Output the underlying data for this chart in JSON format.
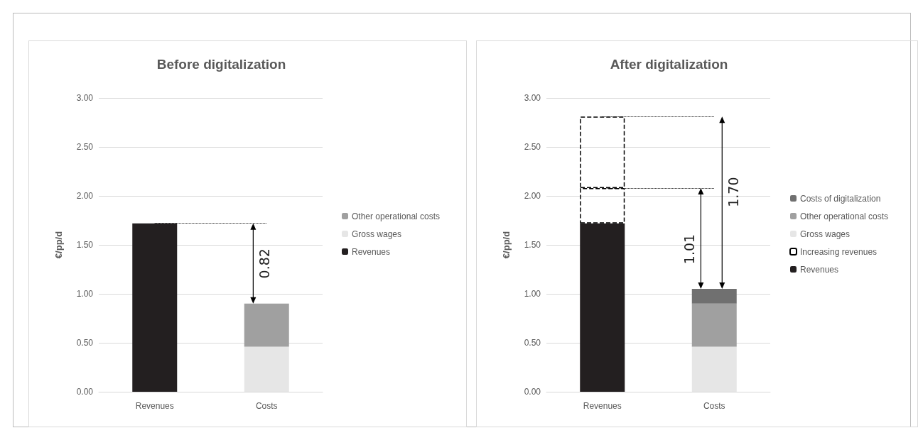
{
  "chart_data": [
    {
      "type": "bar",
      "title": "Before digitalization",
      "ylabel": "€/pp/d",
      "categories": [
        "Revenues",
        "Costs"
      ],
      "stacked": true,
      "ylim": [
        0,
        3
      ],
      "yticks": [
        {
          "value": 0,
          "label": "0.00"
        },
        {
          "value": 0.5,
          "label": "0.50"
        },
        {
          "value": 1,
          "label": "1.00"
        },
        {
          "value": 1.5,
          "label": "1.50"
        },
        {
          "value": 2,
          "label": "2.00"
        },
        {
          "value": 2.5,
          "label": "2.50"
        },
        {
          "value": 3,
          "label": "3.00"
        }
      ],
      "grid": "y",
      "legend": "right",
      "series": [
        {
          "name": "Revenues",
          "color": "#231f20",
          "values": [
            1.72,
            null
          ]
        },
        {
          "name": "Gross wages",
          "color": "#e6e6e6",
          "values": [
            null,
            0.46
          ]
        },
        {
          "name": "Other operational costs",
          "color": "#a0a0a0",
          "values": [
            null,
            0.44
          ]
        }
      ],
      "ref_lines": [
        {
          "axis": "y",
          "value": 1.72,
          "line_style": "dotted",
          "color": "#000000"
        }
      ],
      "annotations": [
        "0.82"
      ]
    },
    {
      "type": "bar",
      "title": "After digitalization",
      "ylabel": "€/pp/d",
      "categories": [
        "Revenues",
        "Costs"
      ],
      "stacked": true,
      "ylim": [
        0,
        3
      ],
      "yticks": [
        {
          "value": 0,
          "label": "0.00"
        },
        {
          "value": 0.5,
          "label": "0.50"
        },
        {
          "value": 1,
          "label": "1.00"
        },
        {
          "value": 1.5,
          "label": "1.50"
        },
        {
          "value": 2,
          "label": "2.00"
        },
        {
          "value": 2.5,
          "label": "2.50"
        },
        {
          "value": 3,
          "label": "3.00"
        }
      ],
      "grid": "y",
      "legend": "right",
      "series": [
        {
          "name": "Revenues",
          "color": "#231f20",
          "values": [
            1.72,
            null
          ]
        },
        {
          "name": "Increasing revenues",
          "color": "#000000",
          "line_style": "dashed",
          "values": [
            0.36,
            null
          ]
        },
        {
          "color": "#000000",
          "line_style": "dashed",
          "values": [
            0.73,
            null
          ]
        },
        {
          "name": "Gross wages",
          "color": "#e6e6e6",
          "values": [
            null,
            0.46
          ]
        },
        {
          "name": "Other operational costs",
          "color": "#a0a0a0",
          "values": [
            null,
            0.44
          ]
        },
        {
          "name": "Costs of digitalization",
          "color": "#707070",
          "values": [
            null,
            0.15
          ]
        }
      ],
      "ref_lines": [
        {
          "axis": "y",
          "value": 2.08,
          "line_style": "dotted",
          "color": "#000000"
        },
        {
          "axis": "y",
          "value": 2.81,
          "line_style": "dotted",
          "color": "#000000"
        }
      ],
      "annotations": [
        "1.01",
        "1.70"
      ]
    }
  ]
}
